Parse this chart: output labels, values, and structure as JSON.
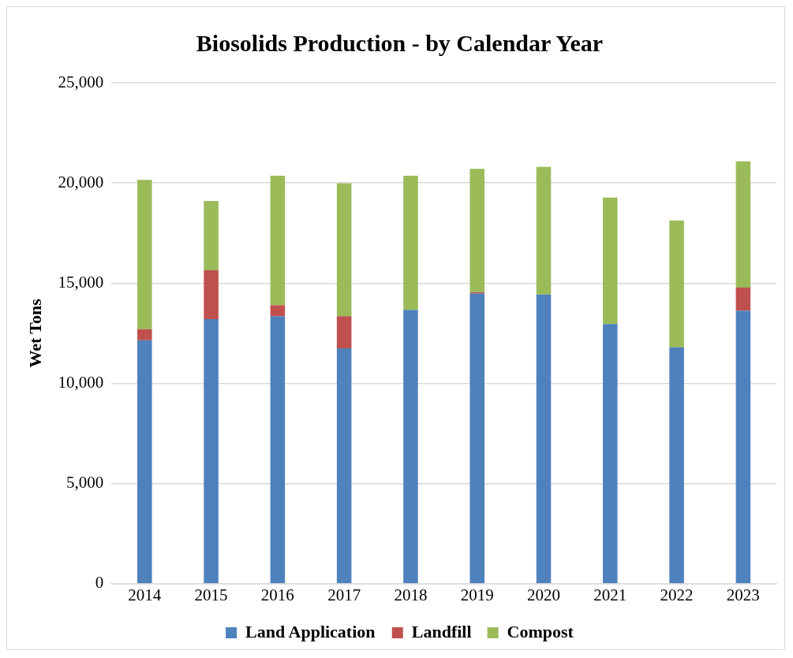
{
  "chart_data": {
    "type": "bar",
    "title": "Biosolids Production - by Calendar Year",
    "ylabel": "Wet Tons",
    "categories": [
      "2014",
      "2015",
      "2016",
      "2017",
      "2018",
      "2019",
      "2020",
      "2021",
      "2022",
      "2023"
    ],
    "stacked": true,
    "series": [
      {
        "name": "Land Application",
        "color": "#4f81bd",
        "values": [
          12150,
          13200,
          13350,
          11750,
          13670,
          14480,
          14430,
          12960,
          11800,
          13630
        ]
      },
      {
        "name": "Landfill",
        "color": "#c0504d",
        "values": [
          550,
          2440,
          550,
          1600,
          0,
          70,
          0,
          0,
          0,
          1150
        ]
      },
      {
        "name": "Compost",
        "color": "#9bbb59",
        "values": [
          7450,
          3460,
          6460,
          6640,
          6690,
          6150,
          6370,
          6310,
          6330,
          6300
        ]
      }
    ],
    "ylim": [
      0,
      25000
    ],
    "yticks": [
      0,
      {
        "value": 5000,
        "label": "5,000"
      },
      {
        "value": 10000,
        "label": "10,000"
      },
      {
        "value": 15000,
        "label": "15,000"
      },
      {
        "value": 20000,
        "label": "20,000"
      },
      {
        "value": 25000,
        "label": "25,000"
      }
    ],
    "grid": "y",
    "legend": "bottom"
  }
}
